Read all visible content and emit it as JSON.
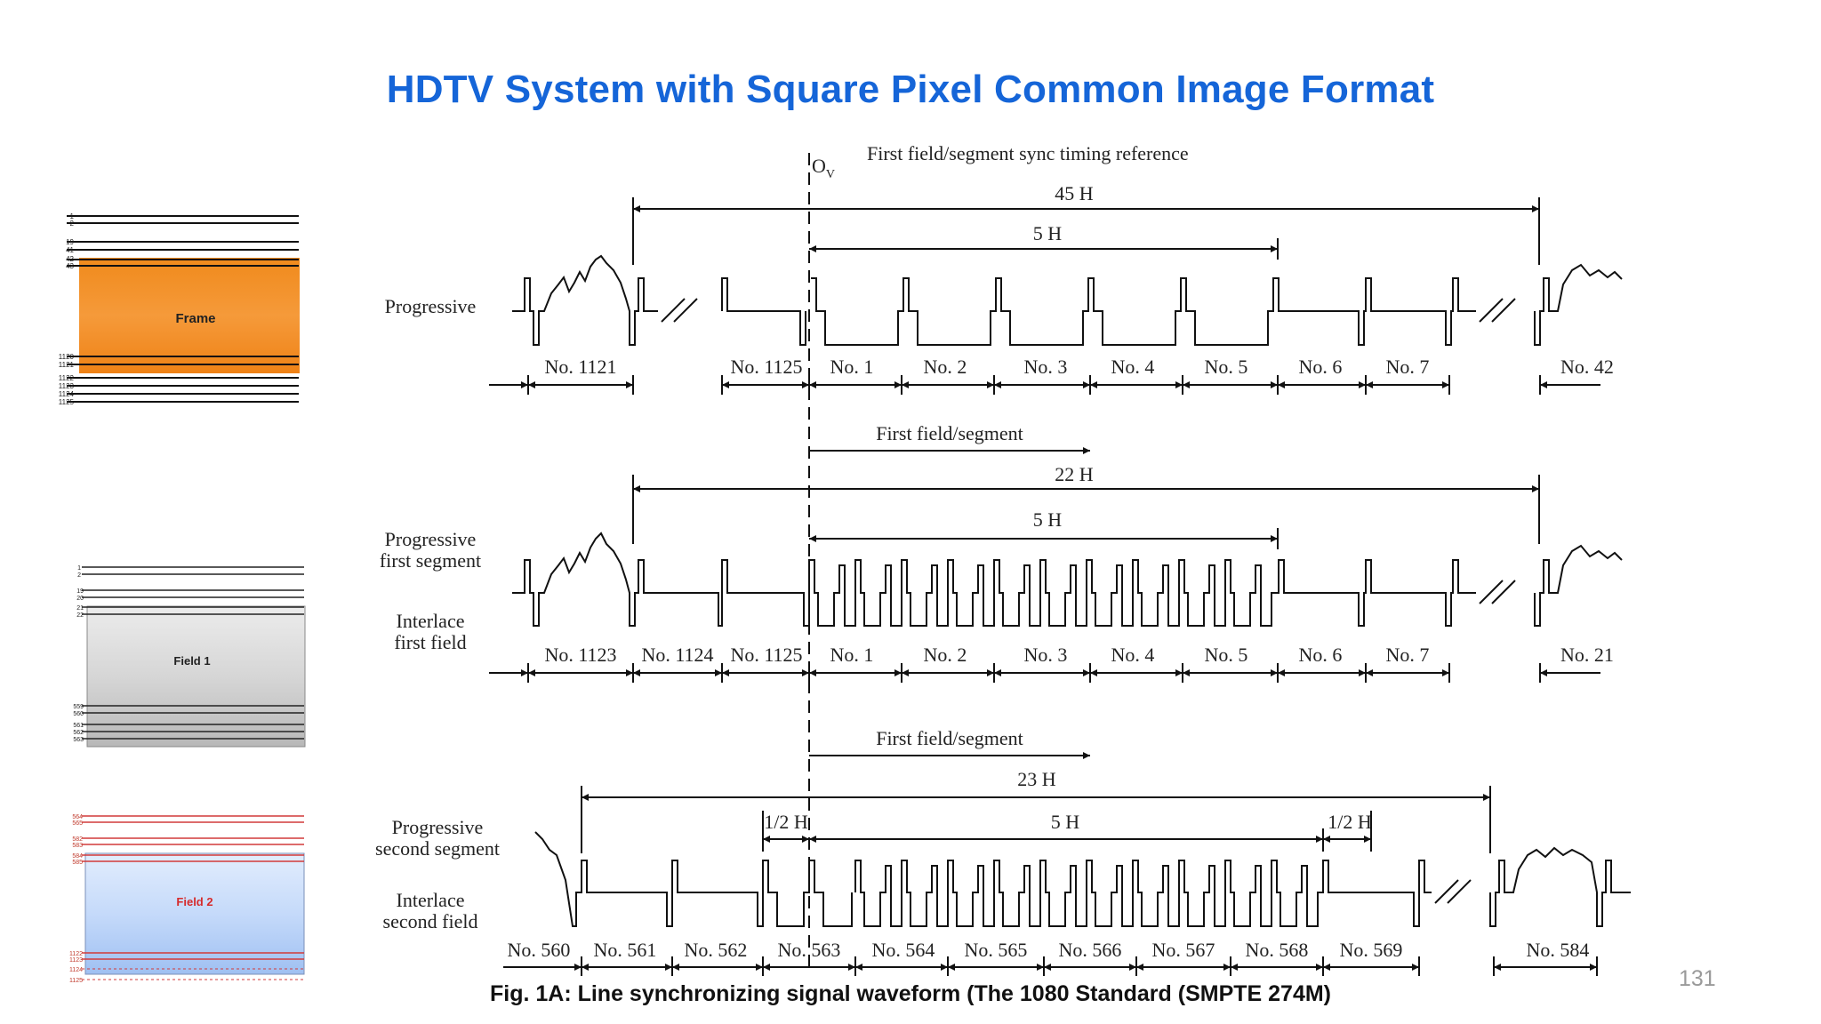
{
  "slide": {
    "title": "HDTV System with Square Pixel Common Image Format",
    "caption": "Fig. 1A: Line synchronizing signal waveform (The 1080 Standard (SMPTE 274M)",
    "page_number": "131"
  },
  "frame_diagram": {
    "label": "Frame",
    "line_numbers": [
      "1",
      "2",
      "19",
      "41",
      "42",
      "43",
      "1120",
      "1121",
      "1122",
      "1123",
      "1124",
      "1125"
    ]
  },
  "field1_diagram": {
    "label": "Field 1",
    "line_numbers": [
      "1",
      "2",
      "19",
      "20",
      "21",
      "22",
      "559",
      "560",
      "561",
      "562",
      "563"
    ]
  },
  "field2_diagram": {
    "label": "Field 2",
    "line_numbers": [
      "564",
      "565",
      "582",
      "583",
      "584",
      "585",
      "1122",
      "1123",
      "1124",
      "1125"
    ]
  },
  "waveform": {
    "ov_label": "O",
    "ov_sub": "V",
    "reference_label": "First field/segment sync timing reference",
    "first_field_segment": "First field/segment",
    "panel1": {
      "mode_label": "Progressive",
      "span_total": "45 H",
      "span_5h": "5 H",
      "lines": [
        "No. 1121",
        "No. 1125",
        "No. 1",
        "No. 2",
        "No. 3",
        "No. 4",
        "No. 5",
        "No. 6",
        "No. 7",
        "No. 42"
      ]
    },
    "panel2": {
      "mode_label_1": "Progressive",
      "mode_label_2": "first segment",
      "mode_label_3": "Interlace",
      "mode_label_4": "first field",
      "span_total": "22 H",
      "span_5h": "5 H",
      "lines": [
        "No. 1123",
        "No. 1124",
        "No. 1125",
        "No. 1",
        "No. 2",
        "No. 3",
        "No. 4",
        "No. 5",
        "No. 6",
        "No. 7",
        "No. 21"
      ]
    },
    "panel3": {
      "mode_label_1": "Progressive",
      "mode_label_2": "second segment",
      "mode_label_3": "Interlace",
      "mode_label_4": "second field",
      "span_total": "23 H",
      "span_half_left": "1/2 H",
      "span_5h": "5 H",
      "span_half_right": "1/2 H",
      "lines": [
        "No. 560",
        "No. 561",
        "No. 562",
        "No. 563",
        "No. 564",
        "No. 565",
        "No. 566",
        "No. 567",
        "No. 568",
        "No. 569",
        "No. 584"
      ]
    }
  }
}
